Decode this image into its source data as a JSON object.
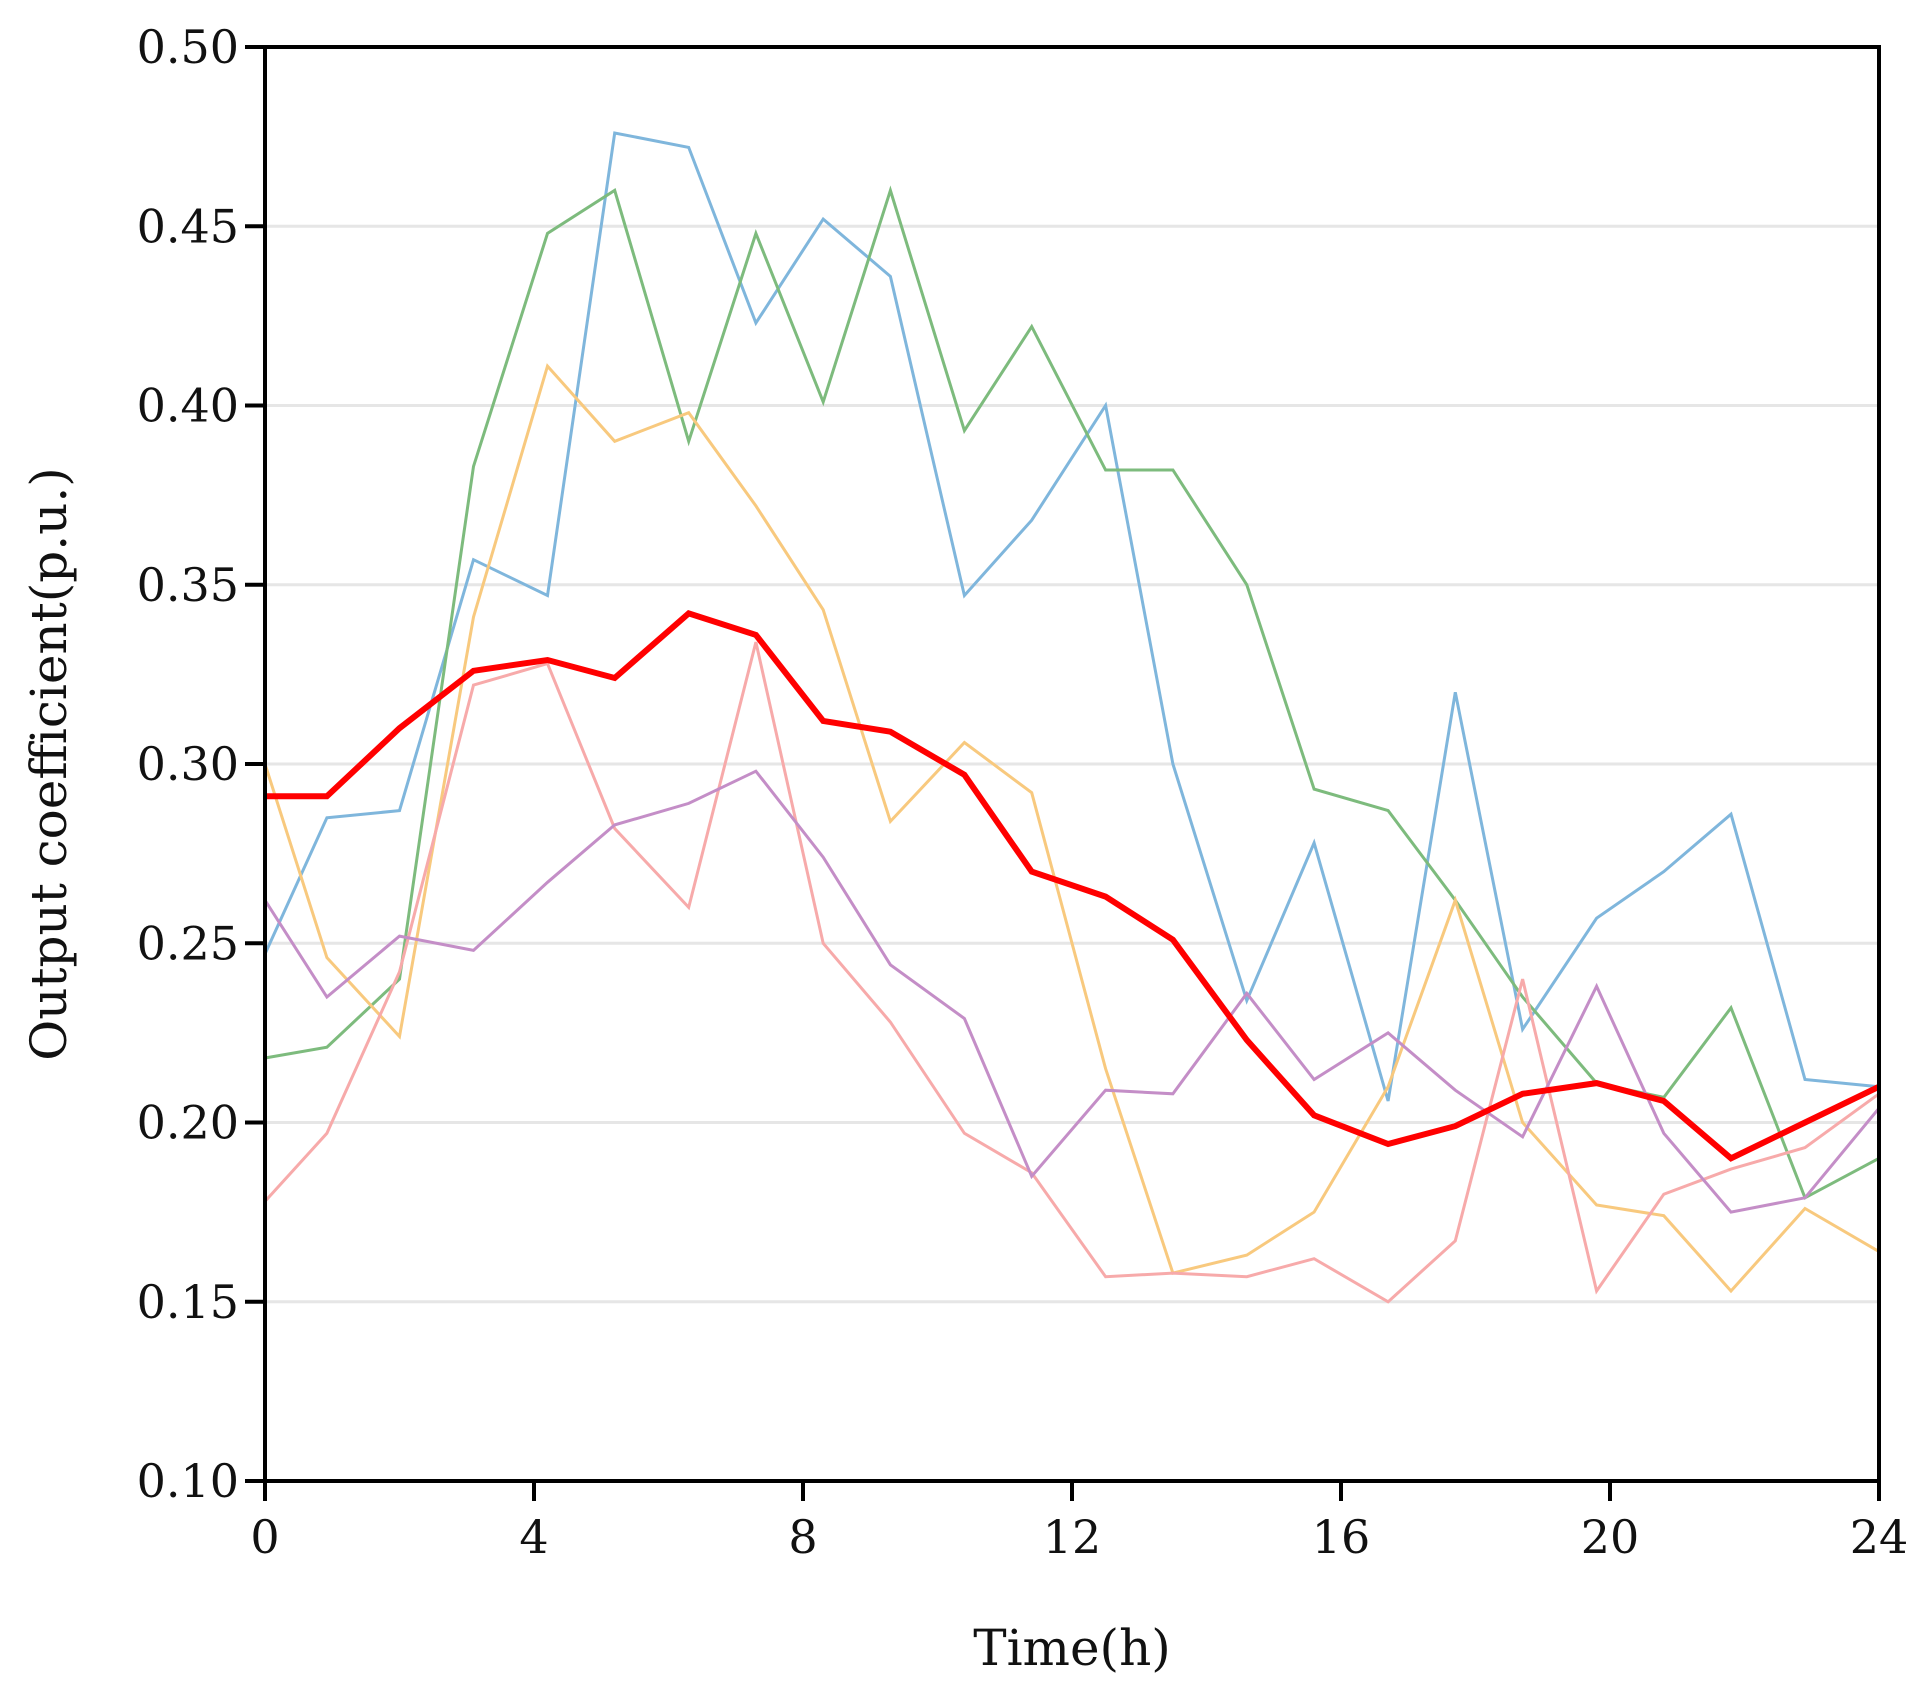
{
  "chart_data": {
    "type": "line",
    "title": "",
    "xlabel": "Time(h)",
    "ylabel": "Output coefficient(p.u.)",
    "xlim": [
      0,
      24
    ],
    "ylim": [
      0.1,
      0.5
    ],
    "grid": "horizontal",
    "xticks": [
      0,
      4,
      8,
      12,
      16,
      20,
      24
    ],
    "xtick_labels": [
      "0",
      "4",
      "8",
      "12",
      "16",
      "20",
      "24"
    ],
    "yticks": [
      0.1,
      0.15,
      0.2,
      0.25,
      0.3,
      0.35,
      0.4,
      0.45,
      0.5
    ],
    "ytick_labels": [
      "0.10",
      "0.15",
      "0.20",
      "0.25",
      "0.30",
      "0.35",
      "0.40",
      "0.45",
      "0.50"
    ],
    "x": [
      0,
      0.92,
      2,
      3.1,
      4.2,
      5.2,
      6.3,
      7.3,
      8.3,
      9.3,
      10.4,
      11.4,
      12.5,
      13.5,
      14.6,
      15.6,
      16.7,
      17.7,
      18.7,
      19.8,
      20.8,
      21.8,
      22.9,
      24
    ],
    "series": [
      {
        "name": "blue",
        "color": "#7fb6dc",
        "width": 3,
        "values": [
          0.247,
          0.285,
          0.287,
          0.357,
          0.347,
          0.476,
          0.472,
          0.423,
          0.452,
          0.436,
          0.347,
          0.368,
          0.4,
          0.3,
          0.234,
          0.278,
          0.206,
          0.32,
          0.226,
          0.257,
          0.27,
          0.286,
          0.212,
          0.21
        ]
      },
      {
        "name": "green",
        "color": "#7dbb7d",
        "width": 3,
        "values": [
          0.218,
          0.221,
          0.24,
          0.383,
          0.448,
          0.46,
          0.39,
          0.448,
          0.401,
          0.46,
          0.393,
          0.422,
          0.382,
          0.382,
          0.35,
          0.293,
          0.287,
          0.262,
          0.235,
          0.211,
          0.207,
          0.232,
          0.179,
          0.19
        ]
      },
      {
        "name": "orange",
        "color": "#f8c97e",
        "width": 3,
        "values": [
          0.3,
          0.246,
          0.224,
          0.341,
          0.411,
          0.39,
          0.398,
          0.372,
          0.343,
          0.284,
          0.306,
          0.292,
          0.215,
          0.158,
          0.163,
          0.175,
          0.21,
          0.262,
          0.2,
          0.177,
          0.174,
          0.153,
          0.176,
          0.164
        ]
      },
      {
        "name": "pink",
        "color": "#f7aaaa",
        "width": 3,
        "values": [
          0.178,
          0.197,
          0.242,
          0.322,
          0.328,
          0.282,
          0.26,
          0.334,
          0.25,
          0.228,
          0.197,
          0.186,
          0.157,
          0.158,
          0.157,
          0.162,
          0.15,
          0.167,
          0.24,
          0.153,
          0.18,
          0.187,
          0.193,
          0.208
        ]
      },
      {
        "name": "purple",
        "color": "#c48ec7",
        "width": 3,
        "values": [
          0.262,
          0.235,
          0.252,
          0.248,
          0.267,
          0.283,
          0.289,
          0.298,
          0.274,
          0.244,
          0.229,
          0.185,
          0.209,
          0.208,
          0.236,
          0.212,
          0.225,
          0.209,
          0.196,
          0.238,
          0.197,
          0.175,
          0.179,
          0.204
        ]
      },
      {
        "name": "red",
        "color": "#ff0000",
        "width": 6,
        "values": [
          0.291,
          0.291,
          0.31,
          0.326,
          0.329,
          0.324,
          0.342,
          0.336,
          0.312,
          0.309,
          0.297,
          0.27,
          0.263,
          0.251,
          0.223,
          0.202,
          0.194,
          0.199,
          0.208,
          0.211,
          0.206,
          0.19,
          0.2,
          0.21
        ]
      }
    ]
  }
}
